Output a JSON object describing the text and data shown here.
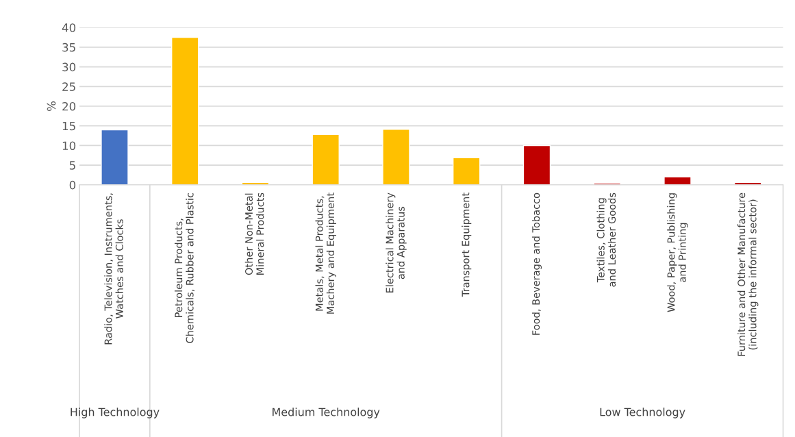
{
  "chart_data": {
    "type": "bar",
    "ylabel": "%",
    "categories": [
      "Radio, Television, Instruments, Watches and Clocks",
      "Petroleum Products, Chemicals, Rubber and Plastic",
      "Other Non-Metal Mineral Products",
      "Metals, Metal Products, Machery and Equipment",
      "Electrical Machinery and Apparatus",
      "Transport Equipment",
      "Food, Beverage and Tobacco",
      "Textiles, Clothing and Leather Goods",
      "Wood, Paper, Publishing and Printing",
      "Furniture and Other Manufacture (including the informal sector)"
    ],
    "values": [
      14,
      37.5,
      0.6,
      12.8,
      14.1,
      6.9,
      10,
      0.4,
      2,
      0.6
    ],
    "colors": [
      "#4472c4",
      "#ffc000",
      "#ffc000",
      "#ffc000",
      "#ffc000",
      "#ffc000",
      "#c00000",
      "#c00000",
      "#c00000",
      "#c00000"
    ],
    "ylim": [
      0,
      40
    ],
    "yticks": [
      0,
      5,
      10,
      15,
      20,
      25,
      30,
      35,
      40
    ],
    "grid": "y",
    "annotations": [
      "High Technology",
      "Medium Technology",
      "Low Technology"
    ]
  }
}
